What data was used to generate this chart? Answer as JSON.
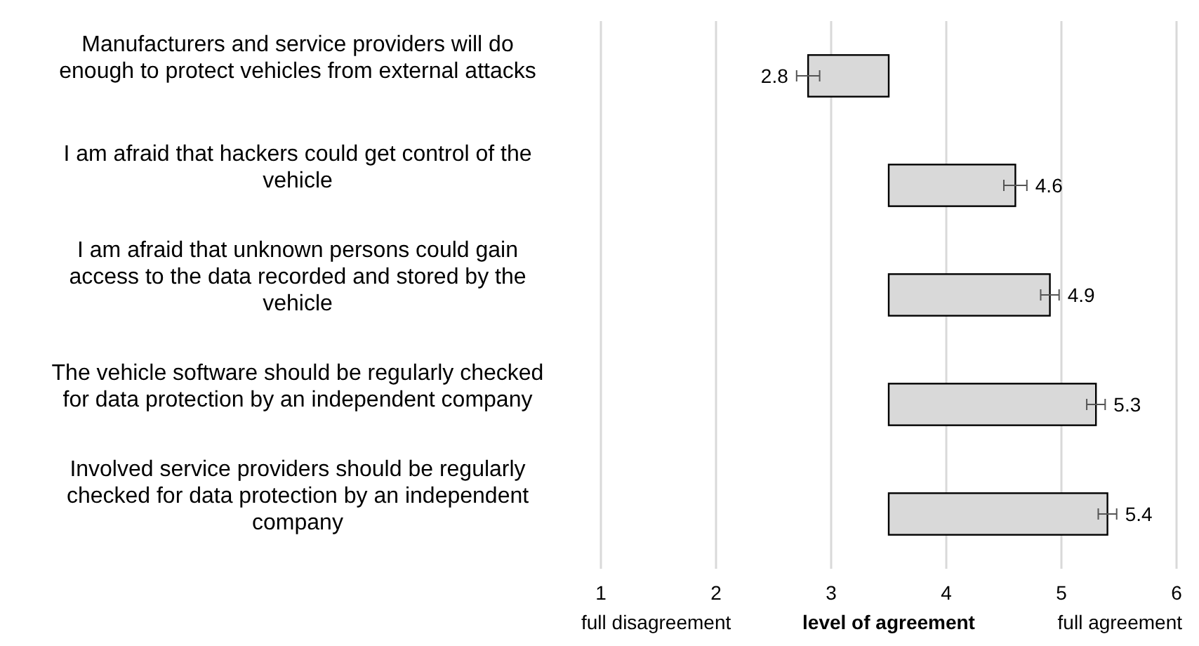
{
  "chart_data": {
    "type": "bar",
    "orientation": "horizontal",
    "categories": [
      "Manufacturers and service providers will do enough to protect vehicles from external attacks",
      "I am afraid that hackers could get control of the vehicle",
      "I am afraid that unknown persons could gain access to the data recorded and stored by the vehicle",
      "The vehicle software should be regularly checked for data protection by an independent company",
      "Involved service providers should be regularly checked for data protection by an independent company"
    ],
    "base": [
      3.5,
      3.5,
      3.5,
      3.5,
      3.5
    ],
    "values": [
      -0.7,
      1.1,
      1.4,
      1.8,
      1.9
    ],
    "value_labels": [
      "2.8",
      "4.6",
      "4.9",
      "5.3",
      "5.4"
    ],
    "errors": [
      0.1,
      0.1,
      0.08,
      0.08,
      0.08
    ],
    "color": "#d9d9d9",
    "xlim": [
      1,
      6
    ],
    "xticks": [
      1,
      2,
      3,
      4,
      5,
      6
    ],
    "xlabel": "level of agreement",
    "annotations": [
      "full disagreement",
      "full agreement"
    ],
    "grid": "x"
  }
}
